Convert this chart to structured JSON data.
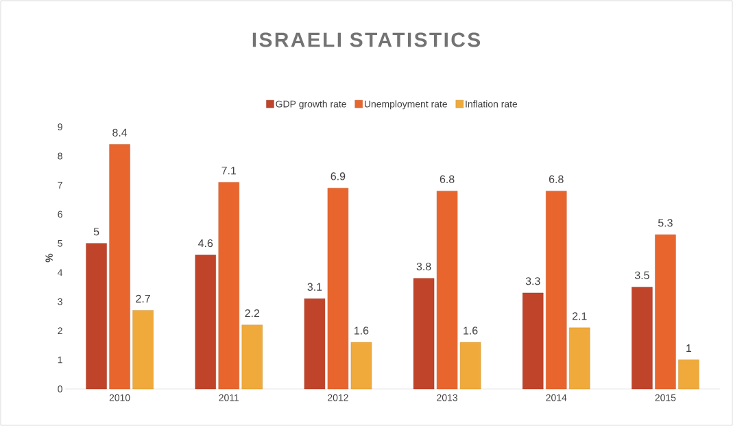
{
  "chart_data": {
    "type": "bar",
    "title": "ISRAELI STATISTICS",
    "ylabel": "%",
    "categories": [
      "2010",
      "2011",
      "2012",
      "2013",
      "2014",
      "2015"
    ],
    "series": [
      {
        "name": "GDP growth rate",
        "color": "#c0442a",
        "values": [
          5,
          4.6,
          3.1,
          3.8,
          3.3,
          3.5
        ]
      },
      {
        "name": "Unemployment rate",
        "color": "#e8662e",
        "values": [
          8.4,
          7.1,
          6.9,
          6.8,
          6.8,
          5.3
        ]
      },
      {
        "name": "Inflation rate",
        "color": "#f0aa3c",
        "values": [
          2.7,
          2.2,
          1.6,
          1.6,
          2.1,
          1
        ]
      }
    ],
    "ylim": [
      0,
      9
    ],
    "yticks": [
      0,
      1,
      2,
      3,
      4,
      5,
      6,
      7,
      8,
      9
    ],
    "legend": "top",
    "data_labels": true
  }
}
